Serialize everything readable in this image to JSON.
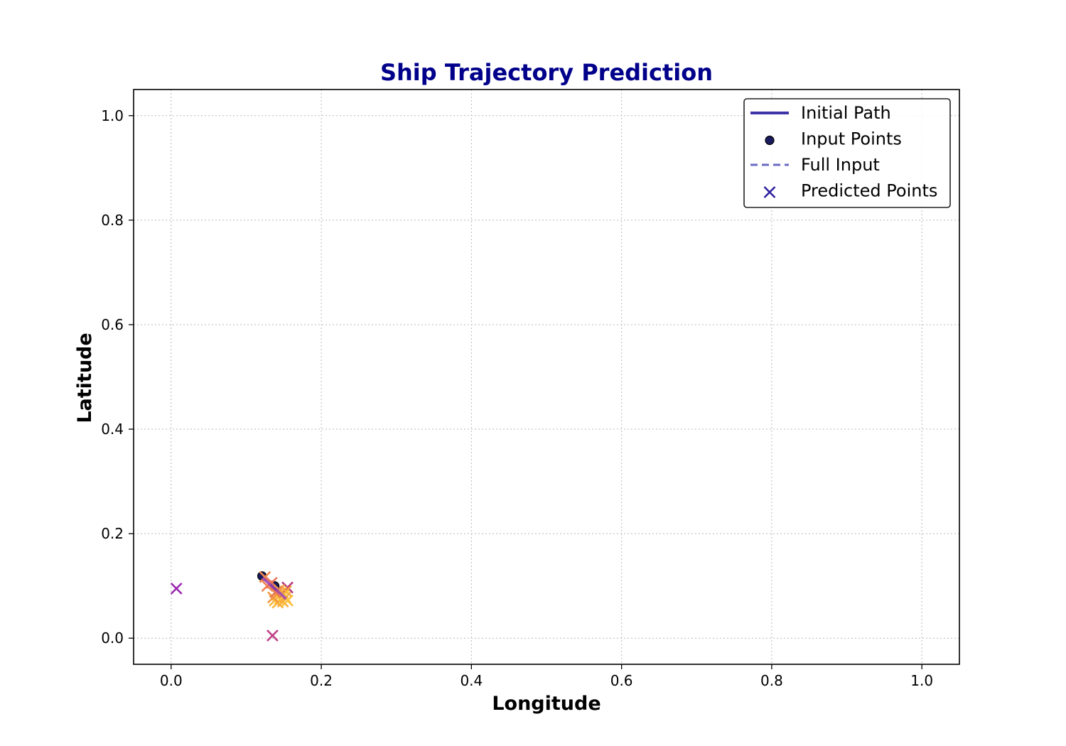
{
  "chart_data": {
    "type": "scatter",
    "title": "Ship Trajectory Prediction",
    "xlabel": "Longitude",
    "ylabel": "Latitude",
    "xlim": [
      -0.05,
      1.05
    ],
    "ylim": [
      -0.05,
      1.05
    ],
    "xticks": [
      "0.0",
      "0.2",
      "0.4",
      "0.6",
      "0.8",
      "1.0"
    ],
    "yticks": [
      "0.0",
      "0.2",
      "0.4",
      "0.6",
      "0.8",
      "1.0"
    ],
    "grid": true,
    "legend_position": "top-right",
    "colors": {
      "title": "#00008b",
      "initial_path": "#3f35a8",
      "input_points": "#1a1a5e",
      "full_input": "#6a6ac4",
      "predicted_legend": "#2d1f9e"
    },
    "legend": [
      {
        "label": "Initial Path",
        "marker": "line"
      },
      {
        "label": "Input Points",
        "marker": "dot"
      },
      {
        "label": "Full Input",
        "marker": "dashed"
      },
      {
        "label": "Predicted Points",
        "marker": "x"
      }
    ],
    "series": [
      {
        "name": "Initial Path",
        "kind": "line",
        "x": [
          0.122,
          0.13,
          0.138,
          0.146,
          0.153
        ],
        "y": [
          0.115,
          0.105,
          0.095,
          0.085,
          0.075
        ]
      },
      {
        "name": "Input Points",
        "kind": "points",
        "x": [
          0.121,
          0.138
        ],
        "y": [
          0.119,
          0.1
        ]
      },
      {
        "name": "Full Input",
        "kind": "dashed",
        "x": [
          0.121,
          0.138,
          0.15
        ],
        "y": [
          0.119,
          0.1,
          0.085
        ]
      },
      {
        "name": "Predicted Points",
        "kind": "x",
        "points": [
          {
            "x": 0.007,
            "y": 0.095,
            "color": "#9a2ab0"
          },
          {
            "x": 0.135,
            "y": 0.005,
            "color": "#c0438a"
          },
          {
            "x": 0.125,
            "y": 0.117,
            "color": "#f08a4b"
          },
          {
            "x": 0.128,
            "y": 0.1,
            "color": "#f2844f"
          },
          {
            "x": 0.134,
            "y": 0.106,
            "color": "#e8745c"
          },
          {
            "x": 0.155,
            "y": 0.097,
            "color": "#b5367e"
          },
          {
            "x": 0.141,
            "y": 0.083,
            "color": "#f7a43f"
          },
          {
            "x": 0.147,
            "y": 0.088,
            "color": "#f9b43a"
          },
          {
            "x": 0.153,
            "y": 0.09,
            "color": "#f6a23e"
          },
          {
            "x": 0.138,
            "y": 0.072,
            "color": "#f9b93a"
          },
          {
            "x": 0.145,
            "y": 0.075,
            "color": "#fbc23a"
          },
          {
            "x": 0.152,
            "y": 0.078,
            "color": "#f7a93d"
          },
          {
            "x": 0.142,
            "y": 0.068,
            "color": "#fbb63a"
          },
          {
            "x": 0.149,
            "y": 0.07,
            "color": "#f9ae3c"
          },
          {
            "x": 0.155,
            "y": 0.072,
            "color": "#fbc03a"
          },
          {
            "x": 0.136,
            "y": 0.078,
            "color": "#f4963f"
          },
          {
            "x": 0.144,
            "y": 0.092,
            "color": "#f59c42"
          },
          {
            "x": 0.15,
            "y": 0.082,
            "color": "#fcc53b"
          },
          {
            "x": 0.139,
            "y": 0.088,
            "color": "#e67a56"
          }
        ]
      }
    ]
  }
}
